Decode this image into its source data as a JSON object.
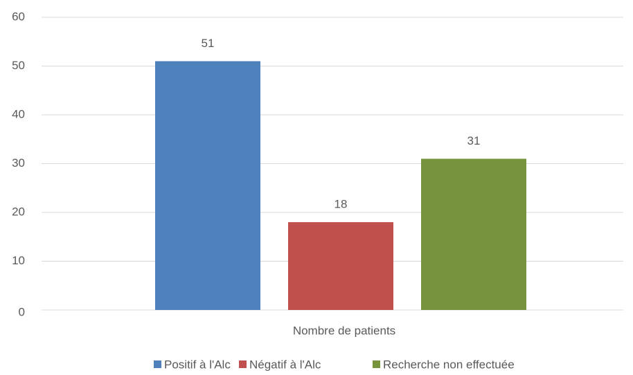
{
  "chart_data": {
    "type": "bar",
    "categories": [
      "Nombre de patients"
    ],
    "series": [
      {
        "name": "Positif à l'Alc",
        "color": "#4f81bd",
        "values": [
          51
        ]
      },
      {
        "name": "Négatif à l'Alc",
        "color": "#c0504d",
        "values": [
          18
        ]
      },
      {
        "name": "Recherche non effectuée",
        "color": "#77933c",
        "values": [
          31
        ]
      }
    ],
    "ylim": [
      0,
      60
    ],
    "yticks": [
      0,
      10,
      20,
      30,
      40,
      50,
      60
    ],
    "grid": true,
    "legend": "bottom",
    "data_labels": true
  }
}
